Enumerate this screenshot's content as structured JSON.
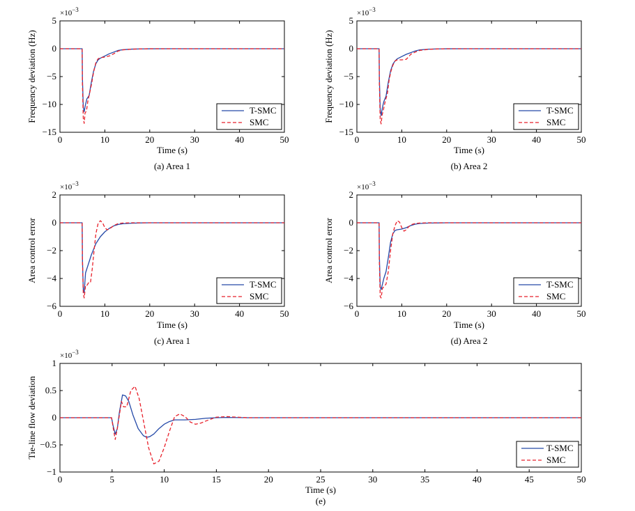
{
  "colors": {
    "tsmc": "#2449a8",
    "smc": "#e8202a"
  },
  "chart_data": [
    {
      "id": "a",
      "type": "line",
      "caption": "(a) Area 1",
      "xlabel": "Time (s)",
      "ylabel": "Frequency deviation (Hz)",
      "exponent_base": "×10",
      "exponent_power": "−3",
      "xlim": [
        0,
        50
      ],
      "ylim": [
        -15,
        5
      ],
      "xticks": [
        0,
        10,
        20,
        30,
        40,
        50
      ],
      "xticklabels": [
        "0",
        "10",
        "20",
        "30",
        "40",
        "50"
      ],
      "yticks": [
        -15,
        -10,
        -5,
        0,
        5
      ],
      "yticklabels": [
        "−15",
        "−10",
        "−5",
        "0",
        "5"
      ],
      "legend_position": "bottom-right",
      "series": [
        {
          "name": "T-SMC",
          "style": "solid",
          "color": "#2449a8",
          "x": [
            0,
            4.95,
            5.0,
            5.2,
            5.4,
            5.7,
            6.0,
            6.5,
            7.0,
            7.5,
            8.0,
            8.5,
            9.0,
            10,
            11,
            12,
            13,
            14,
            16,
            18,
            20,
            25,
            30,
            50
          ],
          "y": [
            0,
            0,
            -5,
            -10.5,
            -11.3,
            -10,
            -9,
            -8.4,
            -6,
            -4,
            -2.7,
            -2,
            -1.7,
            -1.3,
            -0.9,
            -0.6,
            -0.3,
            -0.18,
            -0.07,
            -0.03,
            -0.01,
            0,
            0,
            0
          ]
        },
        {
          "name": "SMC",
          "style": "dashed",
          "color": "#e8202a",
          "x": [
            0,
            4.95,
            5.0,
            5.2,
            5.4,
            5.6,
            5.9,
            6.2,
            6.6,
            7.0,
            7.5,
            8.0,
            8.5,
            9.0,
            10,
            11,
            12,
            13,
            14,
            16,
            18,
            20,
            50
          ],
          "y": [
            0,
            0,
            -6,
            -12.5,
            -13.4,
            -11.5,
            -11.2,
            -9.5,
            -8,
            -6.5,
            -4.2,
            -2.5,
            -1.8,
            -1.6,
            -1.5,
            -1.3,
            -0.9,
            -0.4,
            -0.2,
            -0.08,
            -0.03,
            0,
            0
          ]
        }
      ]
    },
    {
      "id": "b",
      "type": "line",
      "caption": "(b) Area 2",
      "xlabel": "Time (s)",
      "ylabel": "Frequency deviation (Hz)",
      "exponent_base": "×10",
      "exponent_power": "−3",
      "xlim": [
        0,
        50
      ],
      "ylim": [
        -15,
        5
      ],
      "xticks": [
        0,
        10,
        20,
        30,
        40,
        50
      ],
      "xticklabels": [
        "0",
        "10",
        "20",
        "30",
        "40",
        "50"
      ],
      "yticks": [
        -15,
        -10,
        -5,
        0,
        5
      ],
      "yticklabels": [
        "−15",
        "−10",
        "−5",
        "0",
        "5"
      ],
      "legend_position": "bottom-right",
      "series": [
        {
          "name": "T-SMC",
          "style": "solid",
          "color": "#2449a8",
          "x": [
            0,
            4.95,
            5.0,
            5.2,
            5.4,
            5.7,
            6.0,
            6.5,
            7.0,
            7.5,
            8.0,
            8.5,
            9.0,
            10,
            11,
            12,
            13,
            14,
            16,
            18,
            20,
            25,
            50
          ],
          "y": [
            0,
            0,
            -5,
            -11,
            -12,
            -10.5,
            -9.5,
            -8.5,
            -6,
            -4,
            -2.8,
            -2.2,
            -1.8,
            -1.4,
            -1,
            -0.7,
            -0.4,
            -0.2,
            -0.08,
            -0.03,
            -0.01,
            0,
            0
          ]
        },
        {
          "name": "SMC",
          "style": "dashed",
          "color": "#e8202a",
          "x": [
            0,
            4.95,
            5.0,
            5.2,
            5.4,
            5.6,
            5.9,
            6.3,
            6.8,
            7.2,
            7.6,
            8.0,
            8.5,
            9.0,
            10,
            11,
            12,
            13,
            14,
            16,
            18,
            20,
            50
          ],
          "y": [
            0,
            0,
            -6,
            -12.8,
            -13.5,
            -12,
            -11,
            -9.5,
            -8,
            -5.5,
            -4,
            -3,
            -2.2,
            -2,
            -2,
            -1.9,
            -1,
            -0.6,
            -0.3,
            -0.1,
            -0.04,
            0,
            0
          ]
        }
      ]
    },
    {
      "id": "c",
      "type": "line",
      "caption": "(c) Area 1",
      "xlabel": "Time (s)",
      "ylabel": "Area control error",
      "exponent_base": "×10",
      "exponent_power": "−3",
      "xlim": [
        0,
        50
      ],
      "ylim": [
        -6,
        2
      ],
      "xticks": [
        0,
        10,
        20,
        30,
        40,
        50
      ],
      "xticklabels": [
        "0",
        "10",
        "20",
        "30",
        "40",
        "50"
      ],
      "yticks": [
        -6,
        -4,
        -2,
        0,
        2
      ],
      "yticklabels": [
        "−6",
        "−4",
        "−2",
        "0",
        "2"
      ],
      "legend_position": "bottom-right",
      "series": [
        {
          "name": "T-SMC",
          "style": "solid",
          "color": "#2449a8",
          "x": [
            0,
            4.95,
            5.0,
            5.2,
            5.4,
            5.7,
            6.0,
            6.5,
            7.0,
            7.5,
            8.0,
            9.0,
            10,
            11,
            12,
            13,
            14,
            16,
            18,
            20,
            25,
            50
          ],
          "y": [
            0,
            0,
            -2.5,
            -4.8,
            -5.0,
            -3.6,
            -3.3,
            -2.8,
            -2.3,
            -1.9,
            -1.5,
            -1.0,
            -0.65,
            -0.4,
            -0.22,
            -0.12,
            -0.07,
            -0.03,
            -0.01,
            0,
            0,
            0
          ]
        },
        {
          "name": "SMC",
          "style": "dashed",
          "color": "#e8202a",
          "x": [
            0,
            4.95,
            5.0,
            5.2,
            5.4,
            5.7,
            6.0,
            6.4,
            6.8,
            7.2,
            7.6,
            8.0,
            8.5,
            9.0,
            9.5,
            10,
            10.5,
            11,
            12,
            13,
            14,
            16,
            20,
            50
          ],
          "y": [
            0,
            0,
            -2.5,
            -5.1,
            -5.4,
            -4.5,
            -4.5,
            -4.3,
            -4.3,
            -3.3,
            -2,
            -0.8,
            -0.05,
            0.15,
            0.0,
            -0.35,
            -0.5,
            -0.45,
            -0.2,
            -0.05,
            -0.02,
            0,
            0,
            0
          ]
        }
      ]
    },
    {
      "id": "d",
      "type": "line",
      "caption": "(d) Area 2",
      "xlabel": "Time (s)",
      "ylabel": "Area control error",
      "exponent_base": "×10",
      "exponent_power": "−3",
      "xlim": [
        0,
        50
      ],
      "ylim": [
        -6,
        2
      ],
      "xticks": [
        0,
        10,
        20,
        30,
        40,
        50
      ],
      "xticklabels": [
        "0",
        "10",
        "20",
        "30",
        "40",
        "50"
      ],
      "yticks": [
        -6,
        -4,
        -2,
        0,
        2
      ],
      "yticklabels": [
        "−6",
        "−4",
        "−2",
        "0",
        "2"
      ],
      "legend_position": "bottom-right",
      "series": [
        {
          "name": "T-SMC",
          "style": "solid",
          "color": "#2449a8",
          "x": [
            0,
            4.95,
            5.0,
            5.2,
            5.4,
            5.7,
            6.0,
            6.5,
            7.0,
            7.5,
            8.0,
            8.5,
            9.0,
            10,
            11,
            12,
            13,
            14,
            16,
            18,
            20,
            50
          ],
          "y": [
            0,
            0,
            -2.3,
            -4.6,
            -4.8,
            -4.4,
            -4.0,
            -3.5,
            -2.5,
            -1.4,
            -0.8,
            -0.55,
            -0.5,
            -0.45,
            -0.35,
            -0.2,
            -0.1,
            -0.05,
            -0.02,
            -0.01,
            0,
            0
          ]
        },
        {
          "name": "SMC",
          "style": "dashed",
          "color": "#e8202a",
          "x": [
            0,
            4.95,
            5.0,
            5.2,
            5.4,
            5.7,
            6.0,
            6.5,
            7.0,
            7.5,
            8.0,
            8.5,
            9.0,
            9.5,
            10,
            10.5,
            11,
            11.5,
            12,
            13,
            14,
            16,
            20,
            50
          ],
          "y": [
            0,
            0,
            -2.7,
            -5.3,
            -5.4,
            -4.7,
            -4.6,
            -4.4,
            -3.5,
            -2.0,
            -0.8,
            -0.2,
            0.15,
            0.05,
            -0.35,
            -0.6,
            -0.5,
            -0.3,
            -0.15,
            -0.05,
            -0.02,
            0,
            0,
            0
          ]
        }
      ]
    },
    {
      "id": "e",
      "type": "line",
      "caption": "(e)",
      "xlabel": "Time (s)",
      "ylabel": "Tie-line flow deviation",
      "exponent_base": "×10",
      "exponent_power": "−3",
      "xlim": [
        0,
        50
      ],
      "ylim": [
        -1,
        1
      ],
      "xticks": [
        0,
        5,
        10,
        15,
        20,
        25,
        30,
        35,
        40,
        45,
        50
      ],
      "xticklabels": [
        "0",
        "5",
        "10",
        "15",
        "20",
        "25",
        "30",
        "35",
        "40",
        "45",
        "50"
      ],
      "yticks": [
        -1,
        -0.5,
        0,
        0.5,
        1
      ],
      "yticklabels": [
        "−1",
        "−0.5",
        "0",
        "0.5",
        "1"
      ],
      "legend_position": "bottom-right",
      "series": [
        {
          "name": "T-SMC",
          "style": "solid",
          "color": "#2449a8",
          "x": [
            0,
            4.95,
            5.1,
            5.3,
            5.5,
            5.7,
            6.0,
            6.3,
            6.6,
            7.0,
            7.5,
            8.0,
            8.3,
            8.6,
            9.0,
            9.5,
            10,
            10.5,
            11,
            12,
            13,
            14,
            15,
            16,
            18,
            20,
            50
          ],
          "y": [
            0,
            0,
            -0.15,
            -0.3,
            -0.2,
            0.1,
            0.42,
            0.4,
            0.3,
            0.05,
            -0.2,
            -0.33,
            -0.36,
            -0.35,
            -0.3,
            -0.2,
            -0.12,
            -0.07,
            -0.04,
            -0.04,
            -0.03,
            -0.01,
            0,
            0.005,
            0,
            0,
            0
          ]
        },
        {
          "name": "SMC",
          "style": "dashed",
          "color": "#e8202a",
          "x": [
            0,
            4.95,
            5.1,
            5.3,
            5.5,
            5.7,
            5.9,
            6.1,
            6.4,
            6.8,
            7.2,
            7.6,
            8.0,
            8.5,
            9.0,
            9.5,
            10,
            10.5,
            11,
            11.5,
            12,
            12.5,
            13,
            13.5,
            14,
            15,
            16,
            18,
            20,
            50
          ],
          "y": [
            0,
            0,
            -0.18,
            -0.4,
            -0.2,
            0.05,
            0.3,
            0.2,
            0.2,
            0.5,
            0.58,
            0.35,
            -0.05,
            -0.55,
            -0.85,
            -0.8,
            -0.55,
            -0.25,
            0.02,
            0.07,
            0.02,
            -0.08,
            -0.12,
            -0.1,
            -0.06,
            0.01,
            0.02,
            0,
            0,
            0
          ]
        }
      ]
    }
  ]
}
